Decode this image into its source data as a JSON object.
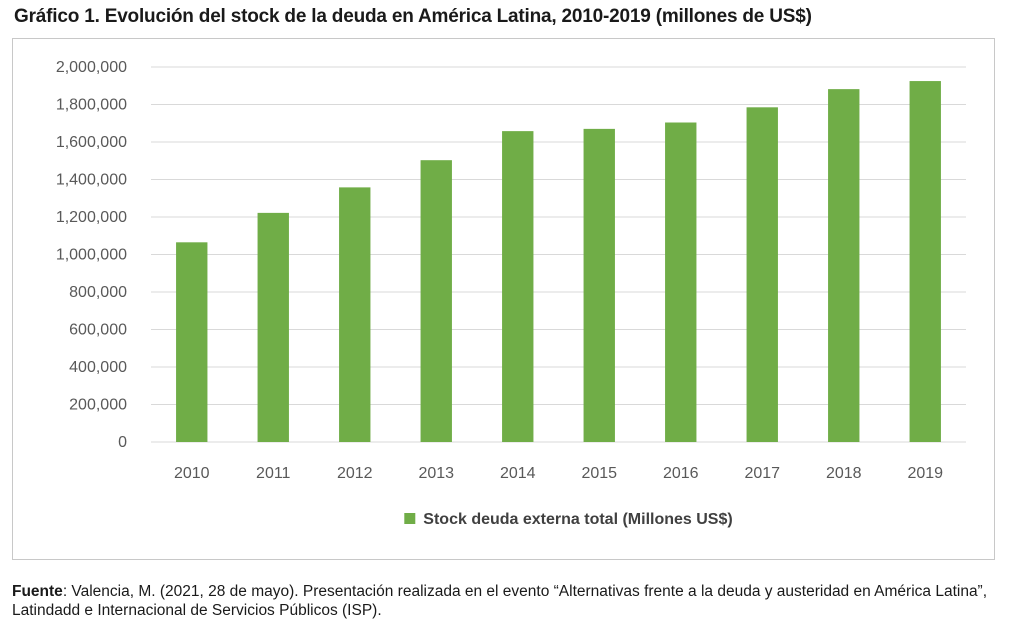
{
  "title": "Gráfico 1. Evolución del stock de la deuda en América Latina, 2010-2019 (millones de US$)",
  "source": {
    "label": "Fuente",
    "text": ": Valencia, M. (2021, 28 de mayo). Presentación realizada en el evento “Alternativas frente a la deuda y austeridad en América Latina”, Latindadd e Internacional de Servicios Públicos (ISP)."
  },
  "colors": {
    "bar": "#70ad47",
    "grid": "#d9d9d9",
    "axis": "#d9d9d9"
  },
  "chart_data": {
    "type": "bar",
    "title": "",
    "xlabel": "",
    "ylabel": "",
    "categories": [
      "2010",
      "2011",
      "2012",
      "2013",
      "2014",
      "2015",
      "2016",
      "2017",
      "2018",
      "2019"
    ],
    "series": [
      {
        "name": "Stock deuda externa total (Millones US$)",
        "values": [
          1065000,
          1222000,
          1358000,
          1503000,
          1658000,
          1670000,
          1704000,
          1785000,
          1882000,
          1925000
        ]
      }
    ],
    "ylim": [
      0,
      2000000
    ],
    "yticks": [
      0,
      200000,
      400000,
      600000,
      800000,
      1000000,
      1200000,
      1400000,
      1600000,
      1800000,
      2000000
    ],
    "ytick_labels": [
      "0",
      "200,000",
      "400,000",
      "600,000",
      "800,000",
      "1,000,000",
      "1,200,000",
      "1,400,000",
      "1,600,000",
      "1,800,000",
      "2,000,000"
    ],
    "grid": true,
    "legend_position": "bottom"
  }
}
